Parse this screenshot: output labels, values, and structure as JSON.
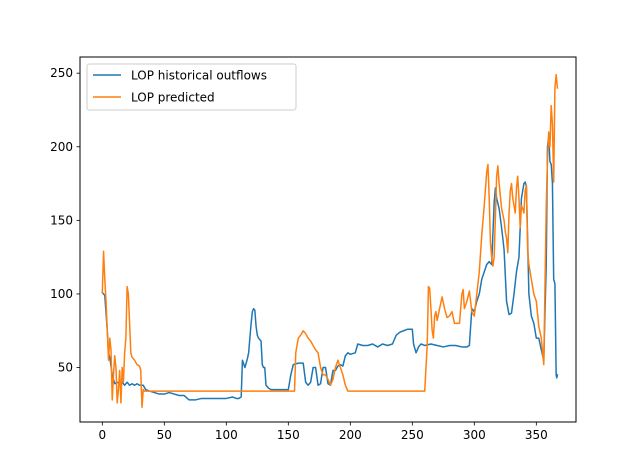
{
  "chart_data": {
    "type": "line",
    "title": "",
    "xlabel": "",
    "ylabel": "",
    "xlim": [
      -18,
      382
    ],
    "ylim": [
      13,
      261
    ],
    "xticks": [
      0,
      50,
      100,
      150,
      200,
      250,
      300,
      350
    ],
    "yticks": [
      50,
      100,
      150,
      200,
      250
    ],
    "grid": false,
    "legend_position": "top-left",
    "series": [
      {
        "name": "LOP historical outflows",
        "color": "#1f77b4",
        "points": [
          [
            0,
            101
          ],
          [
            2,
            99
          ],
          [
            4,
            75
          ],
          [
            5,
            60
          ],
          [
            6,
            57
          ],
          [
            8,
            45
          ],
          [
            10,
            39
          ],
          [
            12,
            40
          ],
          [
            14,
            39
          ],
          [
            16,
            40
          ],
          [
            18,
            38
          ],
          [
            20,
            40
          ],
          [
            22,
            38
          ],
          [
            24,
            39
          ],
          [
            26,
            38
          ],
          [
            28,
            39
          ],
          [
            30,
            38
          ],
          [
            33,
            38
          ],
          [
            35,
            35
          ],
          [
            38,
            34
          ],
          [
            42,
            33
          ],
          [
            46,
            32
          ],
          [
            50,
            32
          ],
          [
            54,
            33
          ],
          [
            58,
            32
          ],
          [
            62,
            31
          ],
          [
            66,
            31
          ],
          [
            70,
            28
          ],
          [
            75,
            28
          ],
          [
            80,
            29
          ],
          [
            85,
            29
          ],
          [
            90,
            29
          ],
          [
            95,
            29
          ],
          [
            100,
            29
          ],
          [
            105,
            30
          ],
          [
            108,
            29
          ],
          [
            110,
            29
          ],
          [
            112,
            30
          ],
          [
            113,
            55
          ],
          [
            115,
            50
          ],
          [
            117,
            56
          ],
          [
            118,
            60
          ],
          [
            119,
            70
          ],
          [
            120,
            80
          ],
          [
            121,
            88
          ],
          [
            122,
            90
          ],
          [
            123,
            89
          ],
          [
            124,
            78
          ],
          [
            125,
            72
          ],
          [
            126,
            70
          ],
          [
            128,
            68
          ],
          [
            129,
            52
          ],
          [
            130,
            50
          ],
          [
            131,
            50
          ],
          [
            132,
            38
          ],
          [
            134,
            36
          ],
          [
            136,
            35
          ],
          [
            140,
            35
          ],
          [
            145,
            35
          ],
          [
            150,
            35
          ],
          [
            152,
            45
          ],
          [
            154,
            52
          ],
          [
            158,
            53
          ],
          [
            162,
            53
          ],
          [
            164,
            40
          ],
          [
            166,
            38
          ],
          [
            168,
            40
          ],
          [
            170,
            50
          ],
          [
            172,
            50
          ],
          [
            174,
            38
          ],
          [
            176,
            39
          ],
          [
            178,
            50
          ],
          [
            180,
            50
          ],
          [
            182,
            39
          ],
          [
            184,
            38
          ],
          [
            186,
            48
          ],
          [
            188,
            48
          ],
          [
            190,
            51
          ],
          [
            192,
            52
          ],
          [
            194,
            51
          ],
          [
            196,
            58
          ],
          [
            198,
            60
          ],
          [
            200,
            59
          ],
          [
            204,
            60
          ],
          [
            206,
            66
          ],
          [
            210,
            65
          ],
          [
            214,
            65
          ],
          [
            218,
            66
          ],
          [
            222,
            64
          ],
          [
            226,
            66
          ],
          [
            230,
            65
          ],
          [
            234,
            66
          ],
          [
            237,
            72
          ],
          [
            240,
            74
          ],
          [
            243,
            75
          ],
          [
            246,
            76
          ],
          [
            249,
            76
          ],
          [
            250,
            76
          ],
          [
            251,
            66
          ],
          [
            253,
            60
          ],
          [
            255,
            64
          ],
          [
            257,
            66
          ],
          [
            260,
            65
          ],
          [
            265,
            66
          ],
          [
            270,
            65
          ],
          [
            275,
            64
          ],
          [
            280,
            65
          ],
          [
            285,
            65
          ],
          [
            290,
            64
          ],
          [
            294,
            64
          ],
          [
            296,
            65
          ],
          [
            298,
            90
          ],
          [
            300,
            88
          ],
          [
            302,
            95
          ],
          [
            304,
            100
          ],
          [
            306,
            110
          ],
          [
            308,
            115
          ],
          [
            310,
            120
          ],
          [
            312,
            122
          ],
          [
            314,
            120
          ],
          [
            316,
            162
          ],
          [
            317,
            172
          ],
          [
            318,
            165
          ],
          [
            320,
            158
          ],
          [
            322,
            145
          ],
          [
            324,
            130
          ],
          [
            326,
            95
          ],
          [
            328,
            86
          ],
          [
            330,
            87
          ],
          [
            332,
            100
          ],
          [
            334,
            115
          ],
          [
            336,
            125
          ],
          [
            338,
            165
          ],
          [
            340,
            175
          ],
          [
            341,
            176
          ],
          [
            342,
            173
          ],
          [
            344,
            100
          ],
          [
            346,
            85
          ],
          [
            348,
            80
          ],
          [
            350,
            70
          ],
          [
            352,
            70
          ],
          [
            354,
            62
          ],
          [
            356,
            55
          ],
          [
            358,
            120
          ],
          [
            359,
            200
          ],
          [
            360,
            207
          ],
          [
            361,
            190
          ],
          [
            362,
            188
          ],
          [
            363,
            175
          ],
          [
            364,
            110
          ],
          [
            365,
            107
          ],
          [
            366,
            45
          ],
          [
            366.5,
            43
          ],
          [
            367,
            45
          ]
        ]
      },
      {
        "name": "LOP predicted",
        "color": "#ff7f0e",
        "points": [
          [
            0,
            101
          ],
          [
            1,
            129
          ],
          [
            2,
            110
          ],
          [
            3,
            95
          ],
          [
            4,
            75
          ],
          [
            5,
            55
          ],
          [
            6,
            70
          ],
          [
            7,
            62
          ],
          [
            8,
            28
          ],
          [
            9,
            45
          ],
          [
            10,
            58
          ],
          [
            11,
            50
          ],
          [
            12,
            26
          ],
          [
            13,
            35
          ],
          [
            14,
            48
          ],
          [
            15,
            26
          ],
          [
            16,
            50
          ],
          [
            17,
            40
          ],
          [
            18,
            60
          ],
          [
            19,
            70
          ],
          [
            20,
            105
          ],
          [
            21,
            100
          ],
          [
            22,
            80
          ],
          [
            23,
            60
          ],
          [
            24,
            57
          ],
          [
            26,
            55
          ],
          [
            28,
            52
          ],
          [
            30,
            51
          ],
          [
            31,
            48
          ],
          [
            32,
            23
          ],
          [
            33,
            35
          ],
          [
            34,
            34
          ],
          [
            40,
            34
          ],
          [
            60,
            34
          ],
          [
            80,
            34
          ],
          [
            100,
            34
          ],
          [
            120,
            34
          ],
          [
            140,
            34
          ],
          [
            155,
            34
          ],
          [
            156,
            60
          ],
          [
            158,
            70
          ],
          [
            160,
            72
          ],
          [
            162,
            75
          ],
          [
            164,
            73
          ],
          [
            166,
            70
          ],
          [
            168,
            68
          ],
          [
            170,
            65
          ],
          [
            172,
            62
          ],
          [
            174,
            60
          ],
          [
            176,
            50
          ],
          [
            178,
            45
          ],
          [
            180,
            45
          ],
          [
            182,
            42
          ],
          [
            184,
            38
          ],
          [
            186,
            42
          ],
          [
            188,
            50
          ],
          [
            190,
            55
          ],
          [
            192,
            50
          ],
          [
            194,
            45
          ],
          [
            196,
            38
          ],
          [
            198,
            34
          ],
          [
            200,
            34
          ],
          [
            220,
            34
          ],
          [
            240,
            34
          ],
          [
            260,
            34
          ],
          [
            262,
            65
          ],
          [
            263,
            105
          ],
          [
            264,
            104
          ],
          [
            265,
            90
          ],
          [
            266,
            75
          ],
          [
            267,
            70
          ],
          [
            268,
            85
          ],
          [
            269,
            88
          ],
          [
            270,
            82
          ],
          [
            272,
            90
          ],
          [
            274,
            98
          ],
          [
            276,
            90
          ],
          [
            278,
            84
          ],
          [
            280,
            85
          ],
          [
            282,
            88
          ],
          [
            284,
            80
          ],
          [
            286,
            80
          ],
          [
            288,
            80
          ],
          [
            290,
            100
          ],
          [
            291,
            103
          ],
          [
            292,
            90
          ],
          [
            294,
            95
          ],
          [
            296,
            102
          ],
          [
            298,
            88
          ],
          [
            300,
            85
          ],
          [
            302,
            100
          ],
          [
            304,
            115
          ],
          [
            306,
            140
          ],
          [
            308,
            160
          ],
          [
            310,
            183
          ],
          [
            311,
            188
          ],
          [
            312,
            165
          ],
          [
            313,
            135
          ],
          [
            314,
            125
          ],
          [
            315,
            119
          ],
          [
            316,
            125
          ],
          [
            318,
            180
          ],
          [
            319,
            187
          ],
          [
            320,
            175
          ],
          [
            322,
            158
          ],
          [
            324,
            150
          ],
          [
            325,
            142
          ],
          [
            326,
            138
          ],
          [
            327,
            128
          ],
          [
            328,
            155
          ],
          [
            329,
            170
          ],
          [
            330,
            175
          ],
          [
            331,
            165
          ],
          [
            332,
            160
          ],
          [
            333,
            155
          ],
          [
            334,
            172
          ],
          [
            335,
            180
          ],
          [
            336,
            165
          ],
          [
            337,
            145
          ],
          [
            338,
            160
          ],
          [
            339,
            158
          ],
          [
            340,
            155
          ],
          [
            341,
            170
          ],
          [
            342,
            174
          ],
          [
            343,
            130
          ],
          [
            344,
            120
          ],
          [
            346,
            110
          ],
          [
            348,
            100
          ],
          [
            350,
            95
          ],
          [
            352,
            78
          ],
          [
            354,
            70
          ],
          [
            356,
            52
          ],
          [
            358,
            160
          ],
          [
            359,
            190
          ],
          [
            360,
            210
          ],
          [
            361,
            200
          ],
          [
            362,
            228
          ],
          [
            363,
            215
          ],
          [
            364,
            176
          ],
          [
            365,
            240
          ],
          [
            366,
            249
          ],
          [
            367,
            240
          ]
        ]
      }
    ]
  }
}
